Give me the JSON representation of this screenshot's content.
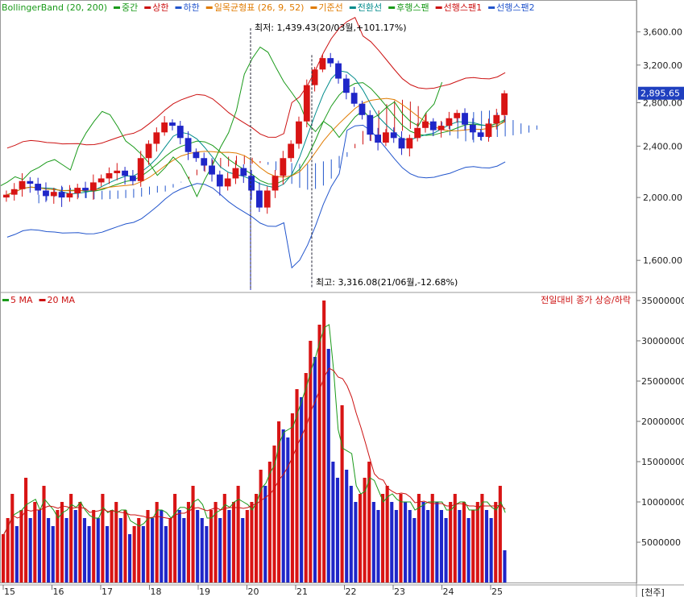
{
  "chart_data": [
    {
      "type": "candlestick",
      "legend": [
        {
          "label": "BollingerBand (20, 200)",
          "color": "#1a9a1a"
        },
        {
          "label": "중간",
          "color": "#1a9a1a"
        },
        {
          "label": "상한",
          "color": "#cc1111"
        },
        {
          "label": "하한",
          "color": "#2255cc"
        },
        {
          "label": "일목균형표 (26, 9, 52)",
          "color": "#e07b00"
        },
        {
          "label": "기준선",
          "color": "#e07b00"
        },
        {
          "label": "전환선",
          "color": "#008b8b"
        },
        {
          "label": "후행스팬",
          "color": "#1a9a1a"
        },
        {
          "label": "선행스팬1",
          "color": "#cc1111"
        },
        {
          "label": "선행스팬2",
          "color": "#2255cc"
        }
      ],
      "price_ticks": [
        "1,600.00",
        "2,000.00",
        "2,400.00",
        "2,800.00",
        "3,200.00",
        "3,600.00"
      ],
      "current_price": "2,895.65",
      "low_annotation": "최저: 1,439.43(20/03월,+101.17%)",
      "high_annotation": "최고: 3,316.08(21/06월,-12.68%)",
      "x_ticks": [
        "15",
        "16",
        "17",
        "18",
        "19",
        "20",
        "21",
        "22",
        "23",
        "24",
        "25"
      ],
      "close_series": [
        2020,
        2060,
        2120,
        2100,
        2050,
        2010,
        2040,
        2000,
        2030,
        2070,
        2050,
        2110,
        2140,
        2180,
        2200,
        2160,
        2120,
        2300,
        2420,
        2520,
        2610,
        2580,
        2470,
        2350,
        2300,
        2240,
        2170,
        2080,
        2140,
        2220,
        2160,
        2050,
        1930,
        2050,
        2160,
        2300,
        2420,
        2620,
        2980,
        3150,
        3280,
        3220,
        3050,
        2900,
        2790,
        2680,
        2500,
        2430,
        2520,
        2470,
        2380,
        2470,
        2560,
        2620,
        2540,
        2580,
        2650,
        2700,
        2590,
        2520,
        2480,
        2600,
        2680,
        2895
      ]
    },
    {
      "type": "bar",
      "legend": [
        {
          "label": "5 MA",
          "color": "#1a9a1a"
        },
        {
          "label": "20 MA",
          "color": "#cc1111"
        }
      ],
      "note": "전일대비 종가 상승/하락",
      "y_ticks": [
        "5000000",
        "10000000",
        "15000000",
        "20000000",
        "25000000",
        "30000000",
        "35000000"
      ],
      "unit": "[천주]",
      "values_millions": [
        6,
        8,
        11,
        7,
        9,
        13,
        8,
        10,
        9,
        12,
        8,
        7,
        9,
        10,
        8,
        11,
        9,
        10,
        8,
        7,
        9,
        8,
        11,
        7,
        9,
        10,
        8,
        9,
        6,
        7,
        8,
        7,
        9,
        8,
        10,
        9,
        7,
        8,
        11,
        9,
        8,
        10,
        12,
        9,
        8,
        7,
        9,
        10,
        8,
        11,
        9,
        10,
        12,
        8,
        9,
        10,
        11,
        14,
        12,
        15,
        17,
        20,
        19,
        18,
        21,
        24,
        23,
        26,
        30,
        28,
        32,
        35,
        29,
        15,
        13,
        22,
        14,
        12,
        10,
        11,
        13,
        15,
        10,
        9,
        11,
        12,
        10,
        9,
        11,
        10,
        9,
        8,
        11,
        10,
        9,
        11,
        10,
        9,
        8,
        10,
        11,
        9,
        10,
        8,
        9,
        10,
        11,
        9,
        8,
        10,
        12,
        4
      ]
    }
  ]
}
